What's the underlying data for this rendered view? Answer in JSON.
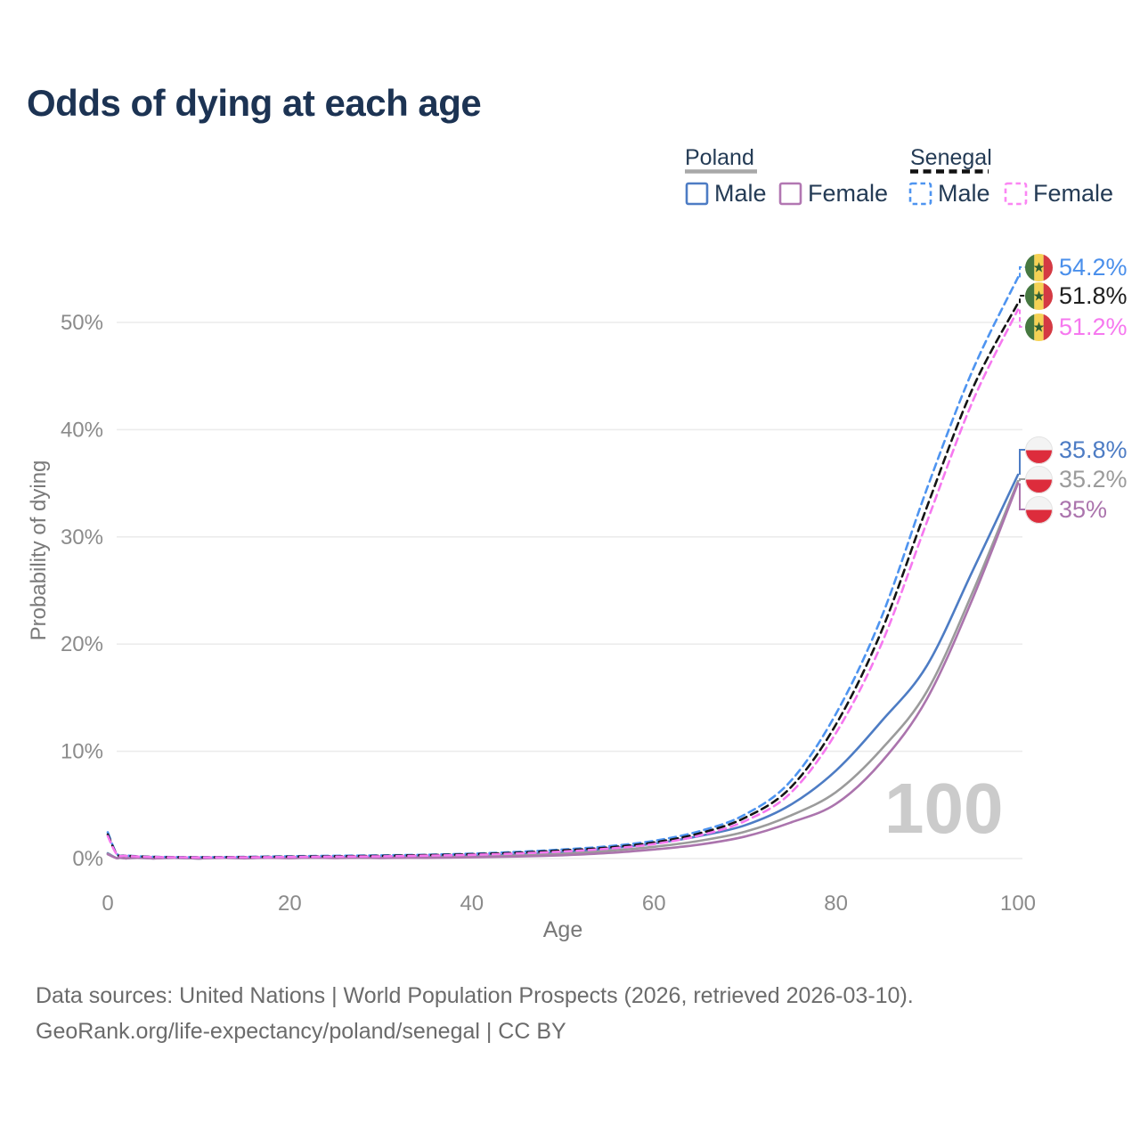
{
  "title": "Odds of dying at each age",
  "legend": {
    "groups": [
      {
        "label": "Poland",
        "line_style": "solid",
        "underline_color": "#a8a8a8",
        "items": [
          {
            "label": "Male",
            "color": "#4d7cc4"
          },
          {
            "label": "Female",
            "color": "#b277b2"
          }
        ]
      },
      {
        "label": "Senegal",
        "line_style": "dashed",
        "underline_color": "#111111",
        "items": [
          {
            "label": "Male",
            "color": "#4e94f0"
          },
          {
            "label": "Female",
            "color": "#fb86f3"
          }
        ]
      }
    ]
  },
  "axes": {
    "y": {
      "title": "Probability of dying",
      "ticks": [
        {
          "value": 0,
          "label": "0%"
        },
        {
          "value": 10,
          "label": "10%"
        },
        {
          "value": 20,
          "label": "20%"
        },
        {
          "value": 30,
          "label": "30%"
        },
        {
          "value": 40,
          "label": "40%"
        },
        {
          "value": 50,
          "label": "50%"
        }
      ]
    },
    "x": {
      "title": "Age",
      "ticks": [
        {
          "value": 0,
          "label": "0"
        },
        {
          "value": 20,
          "label": "20"
        },
        {
          "value": 40,
          "label": "40"
        },
        {
          "value": 60,
          "label": "60"
        },
        {
          "value": 80,
          "label": "80"
        },
        {
          "value": 100,
          "label": "100"
        }
      ]
    }
  },
  "watermark": "100",
  "end_labels": [
    {
      "series": "Senegal Male",
      "text": "54.2%",
      "value": 54.2,
      "flag": "senegal",
      "color": "#4a8feb"
    },
    {
      "series": "Senegal",
      "text": "51.8%",
      "value": 51.8,
      "flag": "senegal",
      "color": "#1f1f1f"
    },
    {
      "series": "Senegal Female",
      "text": "51.2%",
      "value": 51.2,
      "flag": "senegal",
      "color": "#f678ef"
    },
    {
      "series": "Poland Male",
      "text": "35.8%",
      "value": 35.8,
      "flag": "poland",
      "color": "#4d7cc4"
    },
    {
      "series": "Poland",
      "text": "35.2%",
      "value": 35.2,
      "flag": "poland",
      "color": "#9b9b9b"
    },
    {
      "series": "Poland Female",
      "text": "35%",
      "value": 35.0,
      "flag": "poland",
      "color": "#ab74ad"
    }
  ],
  "footer": {
    "line1": "Data sources: United Nations | World Population Prospects (2026, retrieved 2026-03-10).",
    "line2": "GeoRank.org/life-expectancy/poland/senegal | CC BY"
  },
  "flag_colors": {
    "senegal": {
      "green": "#467840",
      "yellow": "#f5d254",
      "red": "#d43a43",
      "star": "#2f5f33"
    },
    "poland": {
      "white": "#f3f3f3",
      "red": "#dd2c3c"
    }
  },
  "chart_data": {
    "type": "line",
    "title": "Odds of dying at each age",
    "xlabel": "Age",
    "ylabel": "Probability of dying",
    "x_range": [
      0,
      100
    ],
    "y_range_pct": [
      0,
      55
    ],
    "grid": "horizontal",
    "x": [
      0,
      1,
      2,
      5,
      10,
      15,
      20,
      25,
      30,
      35,
      40,
      45,
      50,
      55,
      60,
      65,
      70,
      75,
      80,
      85,
      90,
      95,
      100
    ],
    "series": [
      {
        "name": "Poland Male",
        "country": "Poland",
        "sex": "male",
        "color": "#4d7cc4",
        "dash": "solid",
        "end_label": "35.8%",
        "values": [
          0.5,
          0.04,
          0.02,
          0.015,
          0.012,
          0.03,
          0.07,
          0.09,
          0.11,
          0.16,
          0.24,
          0.38,
          0.6,
          0.95,
          1.4,
          2.1,
          3.1,
          5.0,
          8.2,
          12.8,
          18.0,
          26.8,
          35.8
        ]
      },
      {
        "name": "Poland",
        "country": "Poland",
        "sex": "both",
        "color": "#9b9b9b",
        "dash": "solid",
        "end_label": "35.2%",
        "values": [
          0.45,
          0.035,
          0.018,
          0.013,
          0.011,
          0.022,
          0.05,
          0.06,
          0.08,
          0.11,
          0.17,
          0.28,
          0.45,
          0.72,
          1.1,
          1.65,
          2.5,
          4.0,
          6.2,
          10.2,
          15.6,
          24.8,
          35.2
        ]
      },
      {
        "name": "Poland Female",
        "country": "Poland",
        "sex": "female",
        "color": "#ab74ad",
        "dash": "solid",
        "end_label": "35%",
        "values": [
          0.4,
          0.03,
          0.016,
          0.012,
          0.01,
          0.018,
          0.03,
          0.04,
          0.05,
          0.07,
          0.12,
          0.19,
          0.31,
          0.52,
          0.85,
          1.3,
          2.05,
          3.35,
          5.1,
          9.0,
          14.9,
          24.2,
          35.0
        ]
      },
      {
        "name": "Senegal Male",
        "country": "Senegal",
        "sex": "male",
        "color": "#4e94f0",
        "dash": "dashed",
        "end_label": "54.2%",
        "values": [
          2.45,
          0.45,
          0.28,
          0.17,
          0.13,
          0.16,
          0.22,
          0.26,
          0.3,
          0.36,
          0.46,
          0.62,
          0.85,
          1.15,
          1.65,
          2.55,
          4.1,
          7.2,
          13.5,
          22.5,
          34.5,
          45.5,
          54.2
        ]
      },
      {
        "name": "Senegal",
        "country": "Senegal",
        "sex": "both",
        "color": "#141414",
        "dash": "dashed",
        "end_label": "51.8%",
        "values": [
          2.25,
          0.42,
          0.26,
          0.15,
          0.12,
          0.14,
          0.18,
          0.22,
          0.26,
          0.32,
          0.41,
          0.55,
          0.76,
          1.03,
          1.5,
          2.35,
          3.8,
          6.6,
          12.5,
          21.2,
          32.8,
          43.8,
          51.8
        ]
      },
      {
        "name": "Senegal Female",
        "country": "Senegal",
        "sex": "female",
        "color": "#f678ef",
        "dash": "dashed",
        "end_label": "51.2%",
        "values": [
          2.1,
          0.4,
          0.25,
          0.14,
          0.11,
          0.12,
          0.15,
          0.18,
          0.21,
          0.27,
          0.35,
          0.47,
          0.66,
          0.92,
          1.35,
          2.15,
          3.5,
          6.1,
          11.7,
          20.0,
          31.4,
          42.6,
          51.2
        ]
      }
    ]
  }
}
